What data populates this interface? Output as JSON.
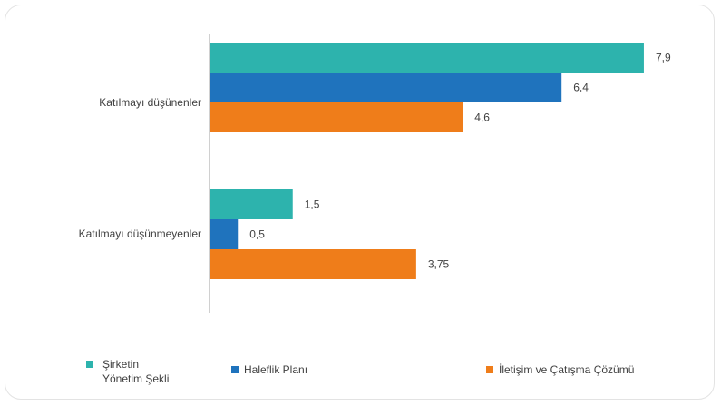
{
  "chart_data": {
    "type": "bar",
    "orientation": "horizontal",
    "categories": [
      "Katılmayı düşünenler",
      "Katılmayı düşünmeyenler"
    ],
    "series": [
      {
        "name": "Şirketin\nYönetim Şekli",
        "color": "#2db3ad",
        "values": [
          7.9,
          1.5
        ],
        "labels": [
          "7,9",
          "1,5"
        ]
      },
      {
        "name": "Haleflik Planı",
        "color": "#1f73bd",
        "values": [
          6.4,
          0.5
        ],
        "labels": [
          "6,4",
          "0,5"
        ]
      },
      {
        "name": "İletişim ve Çatışma Çözümü",
        "color": "#ef7d1a",
        "values": [
          4.6,
          3.75
        ],
        "labels": [
          "4,6",
          "3,75"
        ]
      }
    ],
    "xlim": [
      0,
      8.7
    ],
    "grid": false,
    "legend_position": "bottom",
    "title": "",
    "xlabel": "",
    "ylabel": ""
  }
}
